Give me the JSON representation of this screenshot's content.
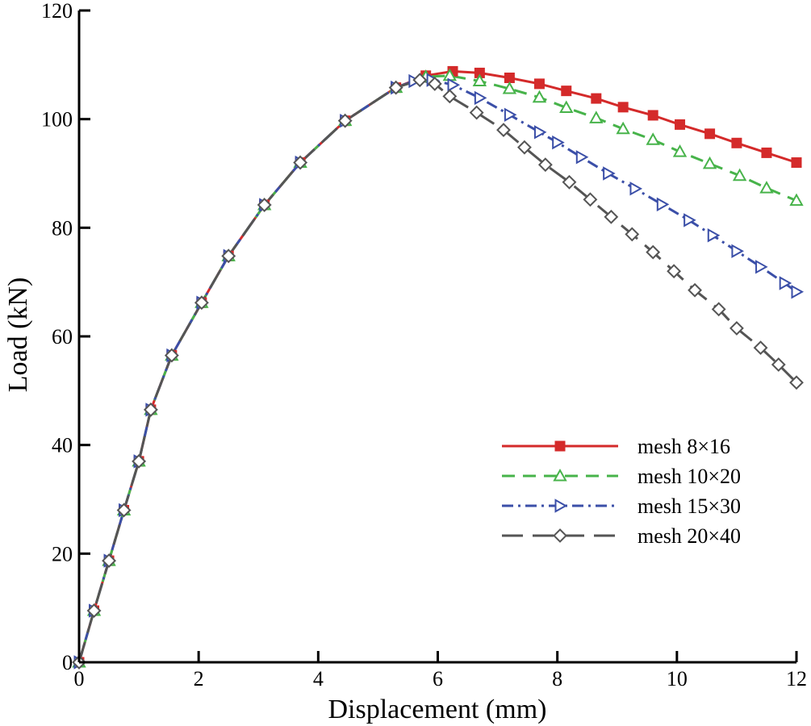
{
  "chart_data": {
    "type": "line",
    "title": "",
    "xlabel": "Displacement (mm)",
    "ylabel": "Load (kN)",
    "xlim": [
      0,
      12
    ],
    "ylim": [
      0,
      120
    ],
    "xticks": [
      0,
      2,
      4,
      6,
      8,
      10,
      12
    ],
    "yticks": [
      0,
      20,
      40,
      60,
      80,
      100,
      120
    ],
    "xtick_labels": [
      "0",
      "2",
      "4",
      "6",
      "8",
      "10",
      "12"
    ],
    "ytick_labels": [
      "0",
      "20",
      "40",
      "60",
      "80",
      "100",
      "120"
    ],
    "grid": false,
    "legend_position": "center-right",
    "series": [
      {
        "name": "mesh 8×16",
        "color": "#d42a2a",
        "dash": "solid",
        "marker": "filled-square",
        "x": [
          0,
          0.25,
          0.5,
          0.75,
          1.0,
          1.2,
          1.55,
          2.05,
          2.5,
          3.1,
          3.7,
          4.45,
          5.3,
          5.8,
          6.25,
          6.7,
          7.2,
          7.7,
          8.15,
          8.65,
          9.1,
          9.6,
          10.05,
          10.55,
          11.0,
          11.5,
          12.0
        ],
        "y": [
          0,
          9.5,
          18.7,
          28,
          37,
          46.5,
          56.5,
          66.2,
          74.8,
          84.2,
          92,
          99.7,
          105.8,
          108,
          108.8,
          108.5,
          107.6,
          106.5,
          105.2,
          103.8,
          102.2,
          100.7,
          99,
          97.3,
          95.6,
          93.8,
          92
        ]
      },
      {
        "name": "mesh 10×20",
        "color": "#47b34a",
        "dash": "dashed",
        "marker": "open-triangle-up",
        "x": [
          0,
          0.25,
          0.5,
          0.75,
          1.0,
          1.2,
          1.55,
          2.05,
          2.5,
          3.1,
          3.7,
          4.45,
          5.3,
          5.8,
          6.2,
          6.7,
          7.2,
          7.7,
          8.15,
          8.65,
          9.1,
          9.6,
          10.05,
          10.55,
          11.05,
          11.5,
          12.0
        ],
        "y": [
          0,
          9.5,
          18.7,
          28,
          37,
          46.5,
          56.5,
          66.2,
          74.8,
          84.2,
          92,
          99.7,
          105.8,
          107.8,
          108,
          107,
          105.6,
          104,
          102.1,
          100.2,
          98.2,
          96.2,
          94,
          91.8,
          89.6,
          87.3,
          85
        ]
      },
      {
        "name": "mesh 15×30",
        "color": "#3b4fa8",
        "dash": "dash-dot",
        "marker": "open-triangle-right",
        "x": [
          0,
          0.25,
          0.5,
          0.75,
          1.0,
          1.2,
          1.55,
          2.05,
          2.5,
          3.1,
          3.7,
          4.45,
          5.3,
          5.6,
          5.9,
          6.25,
          6.7,
          7.2,
          7.7,
          8.0,
          8.4,
          8.85,
          9.3,
          9.75,
          10.2,
          10.6,
          11.0,
          11.4,
          11.8,
          12.0
        ],
        "y": [
          0,
          9.5,
          18.7,
          28,
          37,
          46.5,
          56.5,
          66.2,
          74.8,
          84.2,
          92,
          99.7,
          105.8,
          107,
          107.2,
          106.3,
          103.9,
          100.8,
          97.6,
          95.7,
          93,
          90,
          87.2,
          84.3,
          81.4,
          78.6,
          75.7,
          72.8,
          69.8,
          68.2
        ]
      },
      {
        "name": "mesh 20×40",
        "color": "#555555",
        "dash": "long-dash",
        "marker": "open-diamond",
        "x": [
          0,
          0.25,
          0.5,
          0.75,
          1.0,
          1.2,
          1.55,
          2.05,
          2.5,
          3.1,
          3.7,
          4.45,
          5.3,
          5.7,
          5.95,
          6.2,
          6.65,
          7.1,
          7.45,
          7.8,
          8.2,
          8.55,
          8.9,
          9.25,
          9.6,
          9.95,
          10.3,
          10.7,
          11.0,
          11.4,
          11.7,
          12.0
        ],
        "y": [
          0,
          9.5,
          18.7,
          28,
          37,
          46.5,
          56.5,
          66.2,
          74.8,
          84.2,
          92,
          99.7,
          105.8,
          107.2,
          106.5,
          104.2,
          101.2,
          98,
          94.8,
          91.6,
          88.4,
          85.2,
          82,
          78.8,
          75.5,
          72,
          68.5,
          65,
          61.5,
          57.9,
          54.8,
          51.5
        ]
      }
    ]
  }
}
